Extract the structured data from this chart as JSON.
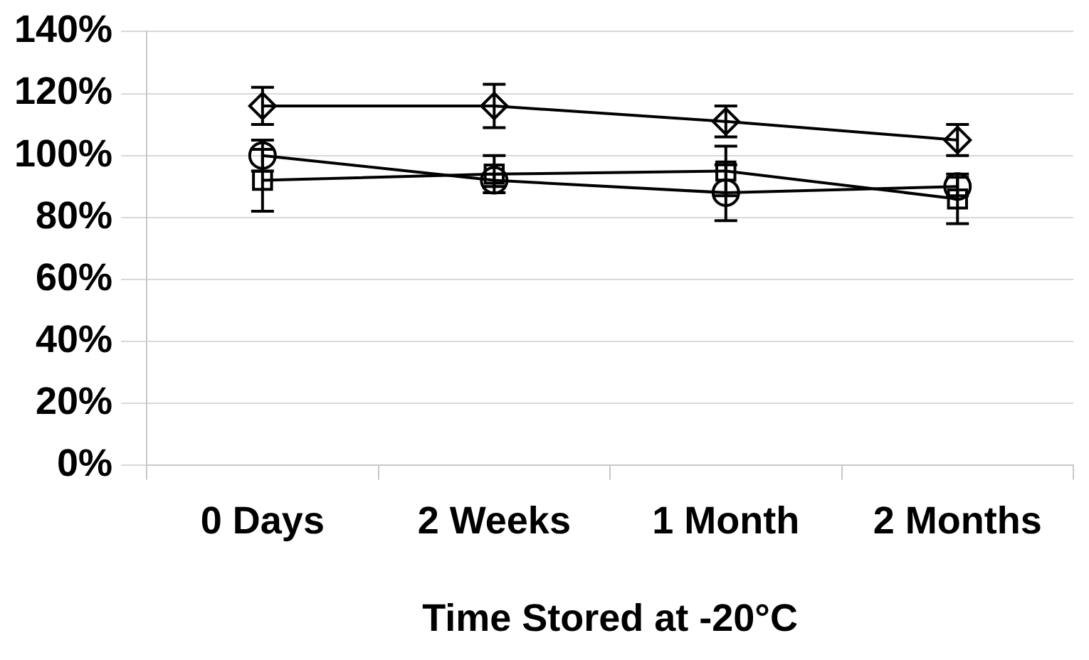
{
  "chart_data": {
    "type": "line",
    "xlabel": "Time Stored at -20°C",
    "categories": [
      "0 Days",
      "2 Weeks",
      "1 Month",
      "2 Months"
    ],
    "series": [
      {
        "color": "#000000",
        "marker": "diamond",
        "values": [
          116,
          116,
          111,
          105
        ],
        "errors": [
          6,
          7,
          5,
          5
        ]
      },
      {
        "color": "#000000",
        "marker": "circle",
        "values": [
          100,
          92,
          88,
          90
        ],
        "errors": [
          5,
          2,
          9,
          3
        ]
      },
      {
        "color": "#000000",
        "marker": "square",
        "values": [
          92,
          94,
          95,
          86
        ],
        "errors": [
          10,
          6,
          8,
          8
        ]
      }
    ],
    "ylim": [
      0,
      140
    ],
    "yticks": [
      {
        "value": 0,
        "label": "0%"
      },
      {
        "value": 20,
        "label": "20%"
      },
      {
        "value": 40,
        "label": "40%"
      },
      {
        "value": 60,
        "label": "60%"
      },
      {
        "value": 80,
        "label": "80%"
      },
      {
        "value": 100,
        "label": "100%"
      },
      {
        "value": 120,
        "label": "120%"
      },
      {
        "value": 140,
        "label": "140%"
      }
    ],
    "grid": "y",
    "legend": false,
    "line_style": "solid"
  }
}
